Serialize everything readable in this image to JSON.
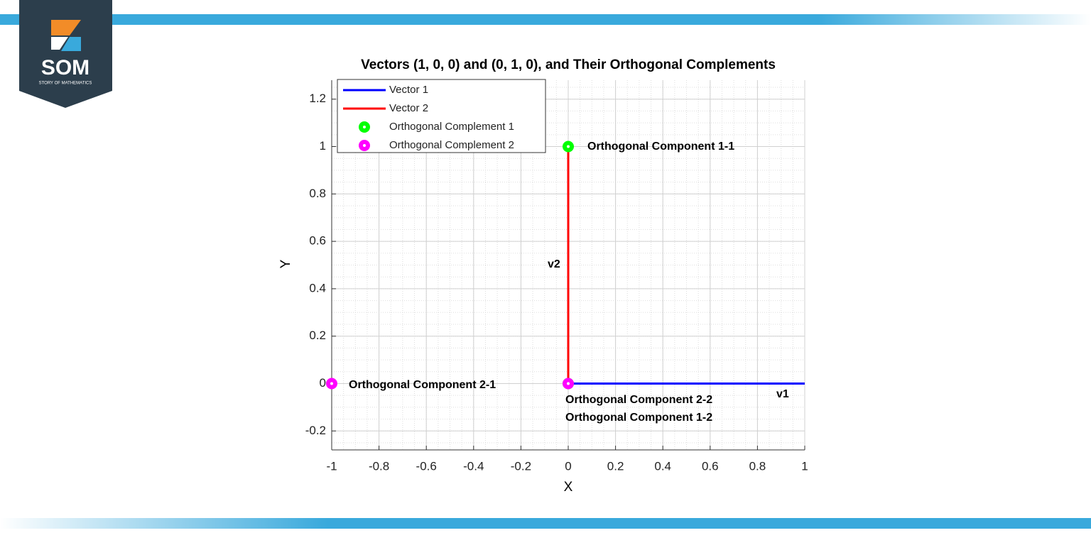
{
  "brand": {
    "name": "SOM",
    "tagline": "STORY OF MATHEMATICS"
  },
  "chart_data": {
    "type": "line",
    "title": "Vectors (1, 0, 0) and (0, 1, 0), and Their Orthogonal Complements",
    "x_label": "X",
    "y_label": "Y",
    "xlim": [
      -1,
      1
    ],
    "ylim": [
      -0.28,
      1.28
    ],
    "xticks": [
      -1,
      -0.8,
      -0.6,
      -0.4,
      -0.2,
      0,
      0.2,
      0.4,
      0.6,
      0.8,
      1
    ],
    "yticks": [
      -0.2,
      0,
      0.2,
      0.4,
      0.6,
      0.8,
      1,
      1.2
    ],
    "grid": true,
    "minor_grid": true,
    "legend": "upper left",
    "series": [
      {
        "name": "Vector 1",
        "color": "#0000ff",
        "mode": "line",
        "x": [
          0,
          1
        ],
        "y": [
          0,
          0
        ]
      },
      {
        "name": "Vector 2",
        "color": "#ff0000",
        "mode": "line",
        "x": [
          0,
          0
        ],
        "y": [
          0,
          1
        ]
      },
      {
        "name": "Orthogonal Complement 1",
        "color": "#00ff00",
        "mode": "marker",
        "x": [
          0,
          0
        ],
        "y": [
          1,
          0
        ]
      },
      {
        "name": "Orthogonal Complement 2",
        "color": "#ff00ff",
        "mode": "marker",
        "x": [
          -1,
          0
        ],
        "y": [
          0,
          0
        ]
      }
    ],
    "annotations": [
      "Orthogonal Component 1-1",
      "Orthogonal Component 2-1",
      "Orthogonal Component 2-2",
      "Orthogonal Component 1-2",
      "v1",
      "v2"
    ]
  }
}
